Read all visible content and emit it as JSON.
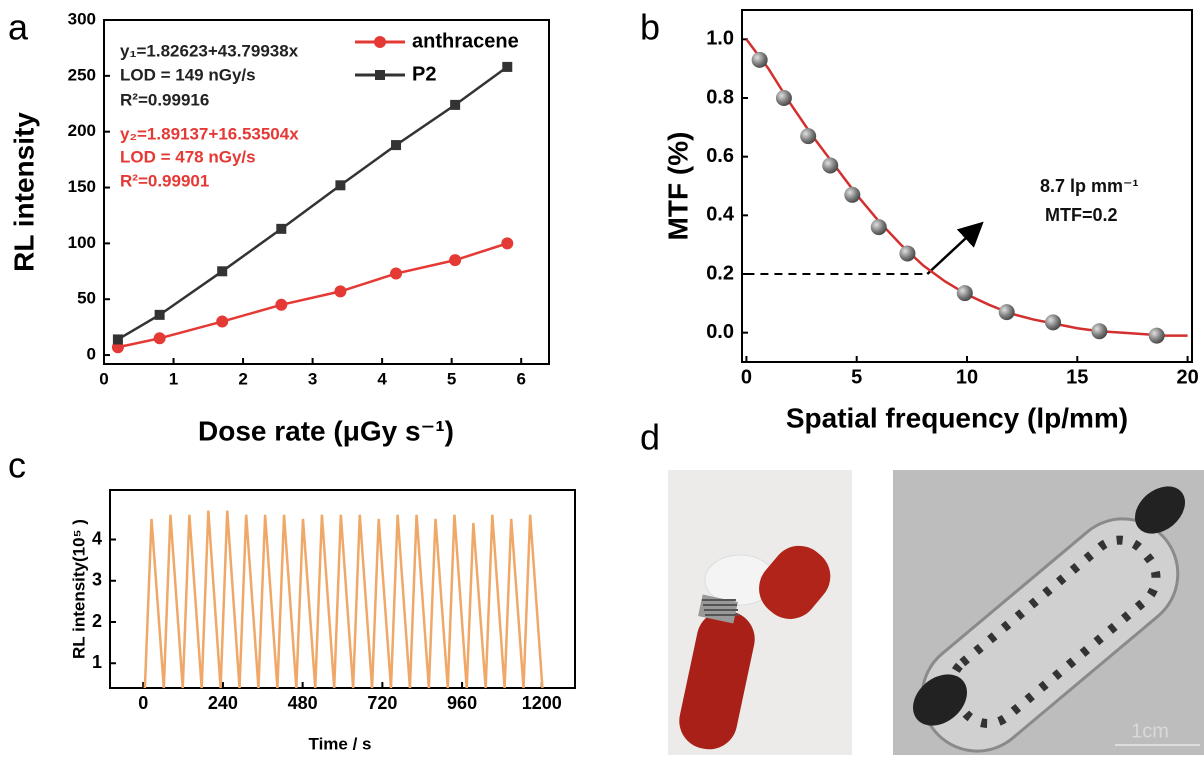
{
  "panel_labels": [
    "a",
    "b",
    "c",
    "d"
  ],
  "photo": {
    "scale_label": "1cm"
  },
  "chart_data": [
    {
      "type": "line",
      "x_label": "Dose rate (μGy s⁻¹)",
      "y_label": "RL intensity",
      "x": [
        0.2,
        0.8,
        1.7,
        2.55,
        3.4,
        4.2,
        5.05,
        5.8
      ],
      "series": [
        {
          "name": "anthracene",
          "color": "#e53935",
          "marker": "circle",
          "values": [
            7,
            15,
            30,
            45,
            57,
            73,
            85,
            100
          ]
        },
        {
          "name": "P2",
          "color": "#333333",
          "marker": "square",
          "values": [
            14,
            36,
            75,
            113,
            152,
            188,
            224,
            258
          ]
        }
      ],
      "annotations": [
        {
          "text": "y₁=1.82623+43.79938x",
          "color": "#222222"
        },
        {
          "text": "LOD = 149 nGy/s",
          "color": "#222222"
        },
        {
          "text": "R²=0.99916",
          "color": "#222222"
        },
        {
          "text": "y₂=1.89137+16.53504x",
          "color": "#e53935"
        },
        {
          "text": "LOD = 478 nGy/s",
          "color": "#e53935"
        },
        {
          "text": "R²=0.99901",
          "color": "#e53935"
        }
      ],
      "xlim": [
        0,
        6.4
      ],
      "ylim": [
        -8,
        300
      ],
      "xticks": [
        0,
        1,
        2,
        3,
        4,
        5,
        6
      ],
      "yticks": [
        0,
        50,
        100,
        150,
        200,
        250,
        300
      ],
      "legend": "top-right"
    },
    {
      "type": "scatter",
      "x_label": "Spatial frequency (lp/mm)",
      "y_label": "MTF (%)",
      "series": [
        {
          "color": "#d32f2f",
          "marker": "none",
          "x": [
            0,
            1,
            2,
            3,
            4,
            5,
            6,
            7,
            8,
            9,
            10,
            11,
            12,
            13,
            14,
            15,
            16,
            17,
            18,
            19,
            20
          ],
          "values": [
            1.0,
            0.9,
            0.78,
            0.67,
            0.57,
            0.47,
            0.38,
            0.3,
            0.23,
            0.175,
            0.13,
            0.095,
            0.065,
            0.045,
            0.03,
            0.015,
            0.005,
            0.0,
            -0.005,
            -0.01,
            -0.01
          ]
        },
        {
          "color": "#777777",
          "marker": "sphere",
          "x": [
            0.6,
            1.7,
            2.8,
            3.8,
            4.8,
            6.0,
            7.3,
            9.9,
            11.8,
            13.9,
            16.0,
            18.6
          ],
          "values": [
            0.93,
            0.8,
            0.67,
            0.57,
            0.47,
            0.36,
            0.27,
            0.135,
            0.07,
            0.035,
            0.005,
            -0.01
          ]
        }
      ],
      "reference": {
        "x": [
          0,
          8.2
        ],
        "y": 0.2
      },
      "annotations": [
        {
          "text": "8.7 lp mm⁻¹",
          "color": "#111111"
        },
        {
          "text": "MTF=0.2",
          "color": "#111111"
        }
      ],
      "xlim": [
        -0.2,
        20.2
      ],
      "ylim": [
        -0.1,
        1.1
      ],
      "xticks": [
        0,
        5,
        10,
        15,
        20
      ],
      "yticks": [
        {
          "value": 0,
          "label": "0.0"
        },
        0.2,
        0.4,
        0.6,
        0.8,
        {
          "value": 1,
          "label": "1.0"
        }
      ]
    },
    {
      "type": "line",
      "x_label": "Time / s",
      "y_label": "RL intensity(10⁵ )",
      "x": [
        5,
        25,
        62,
        82,
        119,
        139,
        176,
        196,
        233,
        253,
        290,
        310,
        347,
        367,
        404,
        424,
        461,
        481,
        518,
        538,
        575,
        595,
        632,
        652,
        689,
        709,
        746,
        766,
        803,
        823,
        860,
        880,
        917,
        937,
        974,
        994,
        1031,
        1051,
        1088,
        1108,
        1145,
        1165,
        1202
      ],
      "series": [
        {
          "color": "#f0a868",
          "marker": "none",
          "values": [
            0.4,
            4.5,
            0.4,
            4.6,
            0.4,
            4.6,
            0.4,
            4.7,
            0.4,
            4.7,
            0.4,
            4.6,
            0.4,
            4.6,
            0.4,
            4.6,
            0.4,
            4.5,
            0.4,
            4.6,
            0.4,
            4.6,
            0.4,
            4.6,
            0.4,
            4.5,
            0.4,
            4.6,
            0.4,
            4.6,
            0.4,
            4.5,
            0.4,
            4.6,
            0.4,
            4.4,
            0.4,
            4.6,
            0.4,
            4.5,
            0.4,
            4.6,
            0.4
          ]
        }
      ],
      "xlim": [
        -100,
        1300
      ],
      "ylim": [
        0.4,
        5.2
      ],
      "xticks": [
        0,
        240,
        480,
        720,
        960,
        1200
      ],
      "yticks": [
        1,
        2,
        3,
        4
      ]
    }
  ]
}
